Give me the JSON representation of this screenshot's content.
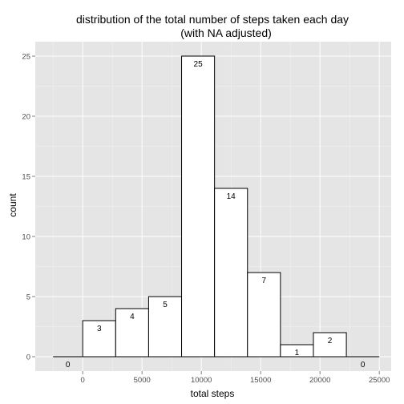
{
  "chart_data": {
    "type": "bar",
    "title_line1": "distribution of the total number of steps taken each day",
    "title_line2": "(with NA adjusted)",
    "xlabel": "total steps",
    "ylabel": "count",
    "bins": [
      {
        "x0": -2500,
        "x1": 0,
        "value": 0,
        "label": "0"
      },
      {
        "x0": 0,
        "x1": 2777.78,
        "value": 3,
        "label": "3"
      },
      {
        "x0": 2777.78,
        "x1": 5555.56,
        "value": 4,
        "label": "4"
      },
      {
        "x0": 5555.56,
        "x1": 8333.33,
        "value": 5,
        "label": "5"
      },
      {
        "x0": 8333.33,
        "x1": 11111.11,
        "value": 25,
        "label": "25"
      },
      {
        "x0": 11111.11,
        "x1": 13888.89,
        "value": 14,
        "label": "14"
      },
      {
        "x0": 13888.89,
        "x1": 16666.67,
        "value": 7,
        "label": "7"
      },
      {
        "x0": 16666.67,
        "x1": 19444.44,
        "value": 1,
        "label": "1"
      },
      {
        "x0": 19444.44,
        "x1": 22222.22,
        "value": 2,
        "label": "2"
      },
      {
        "x0": 22222.22,
        "x1": 25000,
        "value": 0,
        "label": "0"
      }
    ],
    "xlim": [
      -4000,
      26000
    ],
    "ylim": [
      -1.2,
      26.2
    ],
    "x_ticks": [
      0,
      5000,
      10000,
      15000,
      20000,
      25000
    ],
    "x_tick_labels": [
      "0",
      "5000",
      "10000",
      "15000",
      "20000",
      "25000"
    ],
    "y_ticks": [
      0,
      5,
      10,
      15,
      20,
      25
    ],
    "y_tick_labels": [
      "0",
      "5",
      "10",
      "15",
      "20",
      "25"
    ],
    "grid": true,
    "colors": {
      "panel_bg": "#e5e5e5",
      "grid_major": "#ffffff",
      "grid_minor": "#f2f2f2",
      "bar_fill": "#ffffff",
      "bar_stroke": "#000000"
    }
  }
}
